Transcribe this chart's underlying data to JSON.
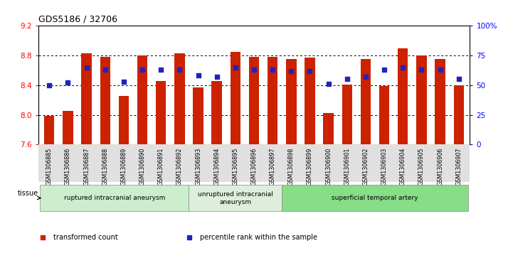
{
  "title": "GDS5186 / 32706",
  "samples": [
    "GSM1306885",
    "GSM1306886",
    "GSM1306887",
    "GSM1306888",
    "GSM1306889",
    "GSM1306890",
    "GSM1306891",
    "GSM1306892",
    "GSM1306893",
    "GSM1306894",
    "GSM1306895",
    "GSM1306896",
    "GSM1306897",
    "GSM1306898",
    "GSM1306899",
    "GSM1306900",
    "GSM1306901",
    "GSM1306902",
    "GSM1306903",
    "GSM1306904",
    "GSM1306905",
    "GSM1306906",
    "GSM1306907"
  ],
  "bar_values": [
    7.99,
    8.05,
    8.83,
    8.78,
    8.25,
    8.8,
    8.46,
    8.83,
    8.37,
    8.46,
    8.85,
    8.78,
    8.78,
    8.75,
    8.77,
    8.02,
    8.41,
    8.75,
    8.39,
    8.9,
    8.8,
    8.75,
    8.4
  ],
  "percentile_values": [
    50,
    52,
    65,
    63,
    53,
    63,
    63,
    63,
    58,
    57,
    65,
    63,
    63,
    62,
    62,
    51,
    55,
    57,
    63,
    65,
    63,
    63,
    55
  ],
  "ylim_left": [
    7.6,
    9.2
  ],
  "ylim_right": [
    0,
    100
  ],
  "yticks_left": [
    7.6,
    8.0,
    8.4,
    8.8,
    9.2
  ],
  "yticks_right": [
    0,
    25,
    50,
    75,
    100
  ],
  "ytick_labels_right": [
    "0",
    "25",
    "50",
    "75",
    "100%"
  ],
  "bar_color": "#cc2200",
  "dot_color": "#2222bb",
  "tissue_groups": [
    {
      "label": "ruptured intracranial aneurysm",
      "start": 0,
      "end": 8,
      "color": "#cceecc"
    },
    {
      "label": "unruptured intracranial\naneurysm",
      "start": 8,
      "end": 13,
      "color": "#ddeedd"
    },
    {
      "label": "superficial temporal artery",
      "start": 13,
      "end": 23,
      "color": "#88dd88"
    }
  ],
  "tissue_label": "tissue",
  "legend_items": [
    {
      "label": "transformed count",
      "color": "#cc2200"
    },
    {
      "label": "percentile rank within the sample",
      "color": "#2222bb"
    }
  ],
  "background_color": "#ffffff"
}
